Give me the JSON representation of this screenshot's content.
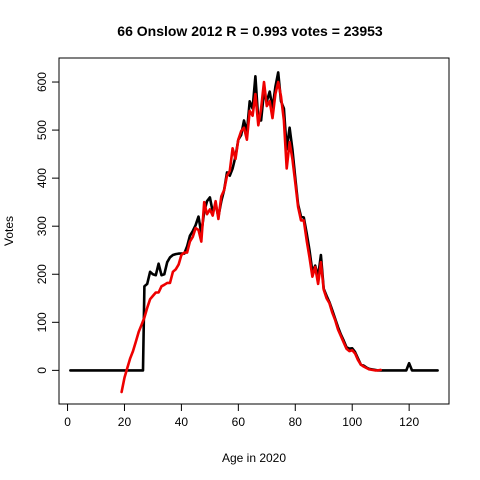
{
  "chart_data": {
    "type": "line",
    "title": "66 Onslow 2012 R = 0.993 votes = 23953",
    "xlabel": "Age in 2020",
    "ylabel": "Votes",
    "xlim": [
      -3,
      134
    ],
    "ylim": [
      -70,
      650
    ],
    "xticks": [
      0,
      20,
      40,
      60,
      80,
      100,
      120
    ],
    "yticks": [
      0,
      100,
      200,
      300,
      400,
      500,
      600
    ],
    "grid": false,
    "series": [
      {
        "color": "#000000",
        "points": [
          [
            1,
            0
          ],
          [
            10,
            0
          ],
          [
            20,
            0
          ],
          [
            26,
            0
          ],
          [
            26.5,
            0
          ],
          [
            27,
            175
          ],
          [
            28,
            180
          ],
          [
            29,
            205
          ],
          [
            30,
            200
          ],
          [
            31,
            198
          ],
          [
            32,
            222
          ],
          [
            33,
            198
          ],
          [
            34,
            200
          ],
          [
            35,
            225
          ],
          [
            36,
            235
          ],
          [
            37,
            240
          ],
          [
            38,
            242
          ],
          [
            39,
            243
          ],
          [
            40,
            243
          ],
          [
            41,
            243
          ],
          [
            42,
            258
          ],
          [
            43,
            280
          ],
          [
            44,
            290
          ],
          [
            45,
            302
          ],
          [
            46,
            320
          ],
          [
            47,
            285
          ],
          [
            48,
            330
          ],
          [
            49,
            352
          ],
          [
            50,
            360
          ],
          [
            51,
            330
          ],
          [
            52,
            345
          ],
          [
            53,
            320
          ],
          [
            54,
            352
          ],
          [
            55,
            375
          ],
          [
            56,
            412
          ],
          [
            57,
            405
          ],
          [
            58,
            420
          ],
          [
            59,
            445
          ],
          [
            60,
            480
          ],
          [
            61,
            490
          ],
          [
            62,
            520
          ],
          [
            63,
            495
          ],
          [
            64,
            560
          ],
          [
            65,
            545
          ],
          [
            66,
            612
          ],
          [
            67,
            520
          ],
          [
            68,
            520
          ],
          [
            69,
            580
          ],
          [
            70,
            560
          ],
          [
            71,
            580
          ],
          [
            72,
            545
          ],
          [
            73,
            590
          ],
          [
            74,
            620
          ],
          [
            75,
            560
          ],
          [
            76,
            545
          ],
          [
            77,
            460
          ],
          [
            78,
            505
          ],
          [
            79,
            460
          ],
          [
            80,
            400
          ],
          [
            81,
            345
          ],
          [
            82,
            320
          ],
          [
            83,
            318
          ],
          [
            84,
            285
          ],
          [
            85,
            250
          ],
          [
            86,
            205
          ],
          [
            87,
            218
          ],
          [
            88,
            195
          ],
          [
            89,
            240
          ],
          [
            90,
            170
          ],
          [
            91,
            155
          ],
          [
            92,
            142
          ],
          [
            93,
            125
          ],
          [
            94,
            108
          ],
          [
            95,
            90
          ],
          [
            96,
            75
          ],
          [
            97,
            62
          ],
          [
            98,
            48
          ],
          [
            99,
            45
          ],
          [
            100,
            46
          ],
          [
            101,
            38
          ],
          [
            102,
            25
          ],
          [
            103,
            12
          ],
          [
            104,
            10
          ],
          [
            105,
            6
          ],
          [
            106,
            3
          ],
          [
            107,
            2
          ],
          [
            108,
            1
          ],
          [
            109,
            0
          ],
          [
            110,
            0
          ],
          [
            115,
            0
          ],
          [
            119,
            0
          ],
          [
            120,
            15
          ],
          [
            121,
            0
          ],
          [
            125,
            0
          ],
          [
            130,
            0
          ]
        ]
      },
      {
        "color": "#ee0000",
        "points": [
          [
            19,
            -45
          ],
          [
            20,
            -15
          ],
          [
            21,
            5
          ],
          [
            22,
            25
          ],
          [
            23,
            40
          ],
          [
            24,
            60
          ],
          [
            25,
            80
          ],
          [
            26,
            95
          ],
          [
            27,
            110
          ],
          [
            28,
            130
          ],
          [
            29,
            148
          ],
          [
            30,
            155
          ],
          [
            31,
            162
          ],
          [
            32,
            162
          ],
          [
            33,
            175
          ],
          [
            34,
            178
          ],
          [
            35,
            182
          ],
          [
            36,
            182
          ],
          [
            37,
            205
          ],
          [
            38,
            210
          ],
          [
            39,
            220
          ],
          [
            40,
            240
          ],
          [
            41,
            245
          ],
          [
            42,
            245
          ],
          [
            43,
            268
          ],
          [
            44,
            278
          ],
          [
            45,
            296
          ],
          [
            46,
            292
          ],
          [
            47,
            268
          ],
          [
            48,
            350
          ],
          [
            49,
            325
          ],
          [
            50,
            335
          ],
          [
            51,
            322
          ],
          [
            52,
            352
          ],
          [
            53,
            315
          ],
          [
            54,
            362
          ],
          [
            55,
            375
          ],
          [
            56,
            405
          ],
          [
            57,
            415
          ],
          [
            58,
            462
          ],
          [
            59,
            440
          ],
          [
            60,
            480
          ],
          [
            61,
            498
          ],
          [
            62,
            505
          ],
          [
            63,
            480
          ],
          [
            64,
            540
          ],
          [
            65,
            530
          ],
          [
            66,
            575
          ],
          [
            67,
            510
          ],
          [
            68,
            545
          ],
          [
            69,
            600
          ],
          [
            70,
            550
          ],
          [
            71,
            560
          ],
          [
            72,
            525
          ],
          [
            73,
            575
          ],
          [
            74,
            600
          ],
          [
            75,
            570
          ],
          [
            76,
            520
          ],
          [
            77,
            420
          ],
          [
            78,
            475
          ],
          [
            79,
            440
          ],
          [
            80,
            390
          ],
          [
            81,
            340
          ],
          [
            82,
            312
          ],
          [
            83,
            312
          ],
          [
            84,
            270
          ],
          [
            85,
            235
          ],
          [
            86,
            195
          ],
          [
            87,
            215
          ],
          [
            88,
            180
          ],
          [
            89,
            225
          ],
          [
            90,
            168
          ],
          [
            91,
            150
          ],
          [
            92,
            140
          ],
          [
            93,
            120
          ],
          [
            94,
            105
          ],
          [
            95,
            85
          ],
          [
            96,
            72
          ],
          [
            97,
            58
          ],
          [
            98,
            45
          ],
          [
            99,
            40
          ],
          [
            100,
            42
          ],
          [
            101,
            35
          ],
          [
            102,
            22
          ],
          [
            103,
            12
          ],
          [
            104,
            8
          ],
          [
            105,
            5
          ],
          [
            106,
            2
          ],
          [
            107,
            1
          ],
          [
            108,
            0
          ],
          [
            109,
            0
          ],
          [
            110,
            1
          ]
        ]
      }
    ]
  }
}
